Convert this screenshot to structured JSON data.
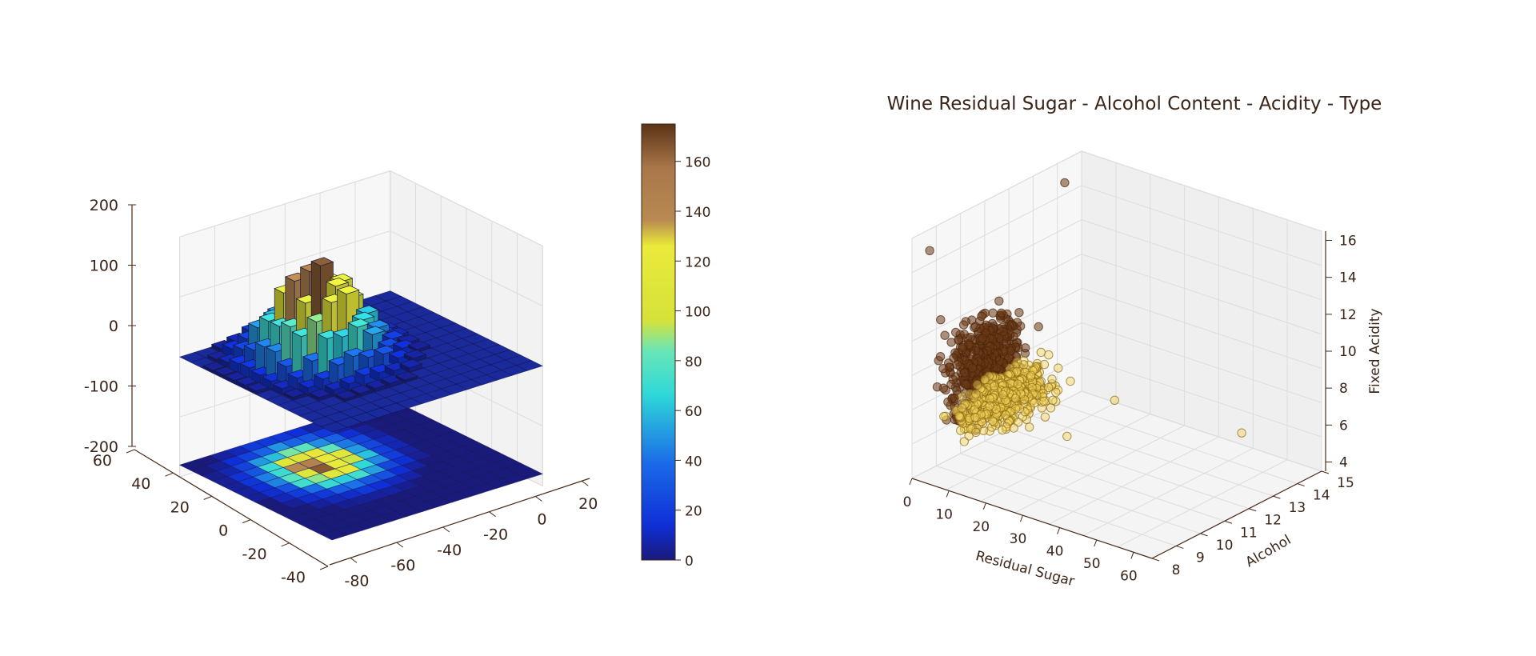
{
  "chart_data": [
    {
      "type": "3d-bar-heatmap",
      "z_axis": {
        "ticks": [
          "200",
          "100",
          "0",
          "-100",
          "-200"
        ],
        "range": [
          -200,
          200
        ]
      },
      "x_axis": {
        "ticks": [
          "-80",
          "-60",
          "-40",
          "-20",
          "0",
          "20"
        ]
      },
      "y_axis": {
        "ticks": [
          "60",
          "40",
          "20",
          "0",
          "-20",
          "-40"
        ]
      },
      "colorbar": {
        "ticks": [
          "160",
          "140",
          "120",
          "100",
          "80",
          "60",
          "40",
          "20",
          "0"
        ],
        "range": [
          0,
          175
        ],
        "colormap": "terrain-like"
      },
      "grid": true,
      "description_values": {
        "grid_size": 14,
        "peak_count": 172,
        "surface_offset": -180
      }
    },
    {
      "type": "scatter3d",
      "title": "Wine Residual Sugar - Alcohol Content - Acidity - Type",
      "x_axis": {
        "label": "Residual Sugar",
        "ticks": [
          "0",
          "10",
          "20",
          "30",
          "40",
          "50",
          "60"
        ],
        "range": [
          0,
          65
        ]
      },
      "y_axis": {
        "label": "Alcohol",
        "ticks": [
          "8",
          "9",
          "10",
          "11",
          "12",
          "13",
          "14",
          "15"
        ],
        "range": [
          8,
          15
        ]
      },
      "z_axis": {
        "label": "Fixed Acidity",
        "ticks": [
          "4",
          "6",
          "8",
          "10",
          "12",
          "14",
          "16"
        ],
        "range": [
          3.5,
          16.5
        ]
      },
      "series": [
        {
          "color": "#6b3a17"
        },
        {
          "color": "#f2d35a"
        }
      ],
      "grid": true
    }
  ]
}
